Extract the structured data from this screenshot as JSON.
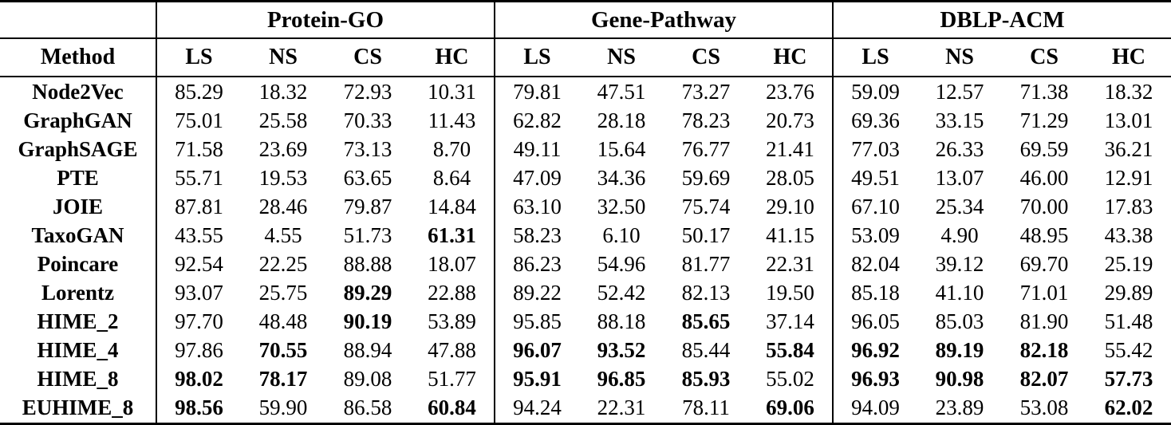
{
  "table": {
    "method_header": "Method",
    "groups": [
      {
        "label": "Protein-GO"
      },
      {
        "label": "Gene-Pathway"
      },
      {
        "label": "DBLP-ACM"
      }
    ],
    "metric_headers": [
      "LS",
      "NS",
      "CS",
      "HC"
    ],
    "rows": [
      {
        "method": "Node2Vec",
        "values": [
          "85.29",
          "18.32",
          "72.93",
          "10.31",
          "79.81",
          "47.51",
          "73.27",
          "23.76",
          "59.09",
          "12.57",
          "71.38",
          "18.32"
        ],
        "bold": [
          0,
          0,
          0,
          0,
          0,
          0,
          0,
          0,
          0,
          0,
          0,
          0
        ]
      },
      {
        "method": "GraphGAN",
        "values": [
          "75.01",
          "25.58",
          "70.33",
          "11.43",
          "62.82",
          "28.18",
          "78.23",
          "20.73",
          "69.36",
          "33.15",
          "71.29",
          "13.01"
        ],
        "bold": [
          0,
          0,
          0,
          0,
          0,
          0,
          0,
          0,
          0,
          0,
          0,
          0
        ]
      },
      {
        "method": "GraphSAGE",
        "values": [
          "71.58",
          "23.69",
          "73.13",
          "8.70",
          "49.11",
          "15.64",
          "76.77",
          "21.41",
          "77.03",
          "26.33",
          "69.59",
          "36.21"
        ],
        "bold": [
          0,
          0,
          0,
          0,
          0,
          0,
          0,
          0,
          0,
          0,
          0,
          0
        ]
      },
      {
        "method": "PTE",
        "values": [
          "55.71",
          "19.53",
          "63.65",
          "8.64",
          "47.09",
          "34.36",
          "59.69",
          "28.05",
          "49.51",
          "13.07",
          "46.00",
          "12.91"
        ],
        "bold": [
          0,
          0,
          0,
          0,
          0,
          0,
          0,
          0,
          0,
          0,
          0,
          0
        ]
      },
      {
        "method": "JOIE",
        "values": [
          "87.81",
          "28.46",
          "79.87",
          "14.84",
          "63.10",
          "32.50",
          "75.74",
          "29.10",
          "67.10",
          "25.34",
          "70.00",
          "17.83"
        ],
        "bold": [
          0,
          0,
          0,
          0,
          0,
          0,
          0,
          0,
          0,
          0,
          0,
          0
        ]
      },
      {
        "method": "TaxoGAN",
        "values": [
          "43.55",
          "4.55",
          "51.73",
          "61.31",
          "58.23",
          "6.10",
          "50.17",
          "41.15",
          "53.09",
          "4.90",
          "48.95",
          "43.38"
        ],
        "bold": [
          0,
          0,
          0,
          1,
          0,
          0,
          0,
          0,
          0,
          0,
          0,
          0
        ]
      },
      {
        "method": "Poincare",
        "values": [
          "92.54",
          "22.25",
          "88.88",
          "18.07",
          "86.23",
          "54.96",
          "81.77",
          "22.31",
          "82.04",
          "39.12",
          "69.70",
          "25.19"
        ],
        "bold": [
          0,
          0,
          0,
          0,
          0,
          0,
          0,
          0,
          0,
          0,
          0,
          0
        ]
      },
      {
        "method": "Lorentz",
        "values": [
          "93.07",
          "25.75",
          "89.29",
          "22.88",
          "89.22",
          "52.42",
          "82.13",
          "19.50",
          "85.18",
          "41.10",
          "71.01",
          "29.89"
        ],
        "bold": [
          0,
          0,
          1,
          0,
          0,
          0,
          0,
          0,
          0,
          0,
          0,
          0
        ]
      },
      {
        "method": "HIME_2",
        "values": [
          "97.70",
          "48.48",
          "90.19",
          "53.89",
          "95.85",
          "88.18",
          "85.65",
          "37.14",
          "96.05",
          "85.03",
          "81.90",
          "51.48"
        ],
        "bold": [
          0,
          0,
          1,
          0,
          0,
          0,
          1,
          0,
          0,
          0,
          0,
          0
        ]
      },
      {
        "method": "HIME_4",
        "values": [
          "97.86",
          "70.55",
          "88.94",
          "47.88",
          "96.07",
          "93.52",
          "85.44",
          "55.84",
          "96.92",
          "89.19",
          "82.18",
          "55.42"
        ],
        "bold": [
          0,
          1,
          0,
          0,
          1,
          1,
          0,
          1,
          1,
          1,
          1,
          0
        ]
      },
      {
        "method": "HIME_8",
        "values": [
          "98.02",
          "78.17",
          "89.08",
          "51.77",
          "95.91",
          "96.85",
          "85.93",
          "55.02",
          "96.93",
          "90.98",
          "82.07",
          "57.73"
        ],
        "bold": [
          1,
          1,
          0,
          0,
          1,
          1,
          1,
          0,
          1,
          1,
          1,
          1
        ]
      },
      {
        "method": "EUHIME_8",
        "values": [
          "98.56",
          "59.90",
          "86.58",
          "60.84",
          "94.24",
          "22.31",
          "78.11",
          "69.06",
          "94.09",
          "23.89",
          "53.08",
          "62.02"
        ],
        "bold": [
          1,
          0,
          0,
          1,
          0,
          0,
          0,
          1,
          0,
          0,
          0,
          1
        ]
      }
    ]
  },
  "colors": {
    "text": "#000000",
    "background": "#ffffff",
    "rule": "#000000"
  }
}
